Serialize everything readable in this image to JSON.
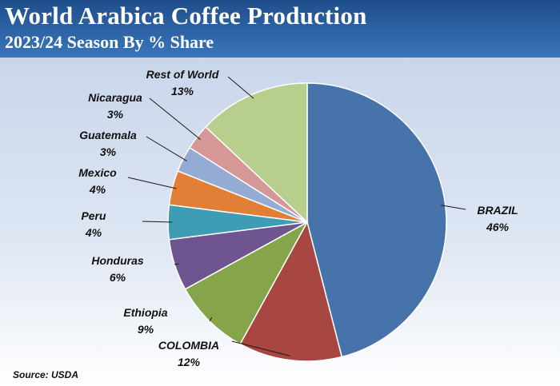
{
  "chart_data": {
    "type": "pie",
    "title": "World Arabica Coffee Production",
    "subtitle": "2023/24 Season By % Share",
    "slices": [
      {
        "label": "BRAZIL",
        "value": 46,
        "pct_label": "46%",
        "color": "#4674aa"
      },
      {
        "label": "COLOMBIA",
        "value": 12,
        "pct_label": "12%",
        "color": "#a84742"
      },
      {
        "label": "Ethiopia",
        "value": 9,
        "pct_label": "9%",
        "color": "#86a54a"
      },
      {
        "label": "Honduras",
        "value": 6,
        "pct_label": "6%",
        "color": "#6e5590"
      },
      {
        "label": "Peru",
        "value": 4,
        "pct_label": "4%",
        "color": "#3f9cb5"
      },
      {
        "label": "Mexico",
        "value": 4,
        "pct_label": "4%",
        "color": "#e07f35"
      },
      {
        "label": "Guatemala",
        "value": 3,
        "pct_label": "3%",
        "color": "#94acd4"
      },
      {
        "label": "Nicaragua",
        "value": 3,
        "pct_label": "3%",
        "color": "#d69896"
      },
      {
        "label": "Rest of World",
        "value": 13,
        "pct_label": "13%",
        "color": "#b7ce8d"
      }
    ],
    "start_angle": "12 o'clock",
    "direction": "clockwise"
  },
  "source": "Source: USDA"
}
